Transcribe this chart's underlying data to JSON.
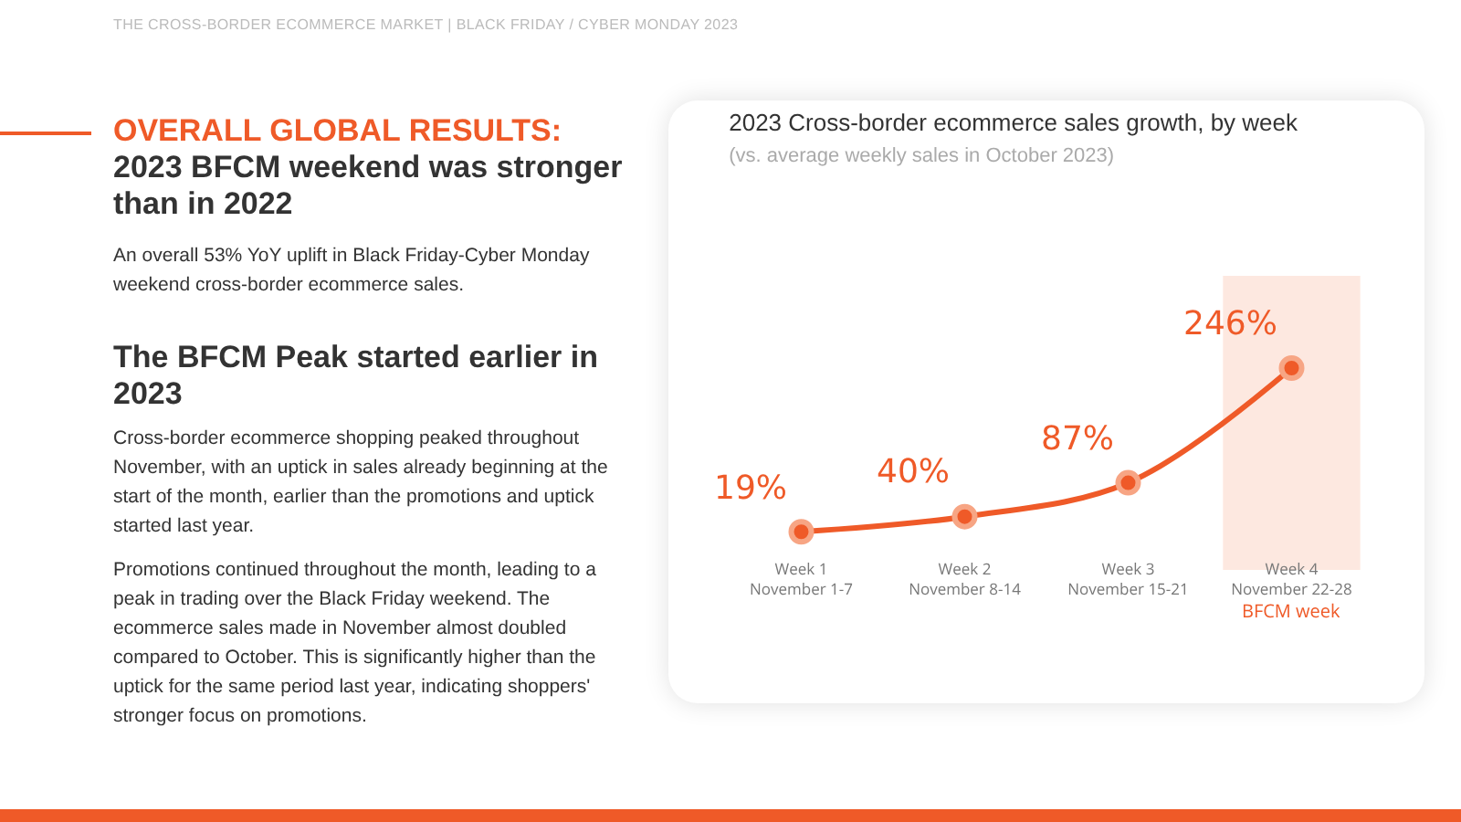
{
  "chart_data": {
    "type": "line",
    "title": "2023 Cross-border ecommerce sales growth, by week",
    "subtitle": "(vs. average weekly sales in October 2023)",
    "categories": [
      "Week 1\nNovember 1-7",
      "Week 2\nNovember 8-14",
      "Week 3\nNovember 15-21",
      "Week 4\nNovember 22-28"
    ],
    "series": [
      {
        "color": "#ef5a28",
        "values": [
          19,
          40,
          87,
          246
        ],
        "value_labels": [
          "19%",
          "40%",
          "87%",
          "246%"
        ]
      }
    ],
    "marker": "circle",
    "line_style": "solid",
    "grid": false,
    "tick_labels": "x",
    "bands": [
      {
        "axis": "x",
        "from": "Week 4\nNovember 22-28",
        "to": "Week 4\nNovember 22-28",
        "label": "BFCM week",
        "color": "#fcd9cb"
      }
    ],
    "annotations": [
      "THE CROSS-BORDER ECOMMERCE MARKET | BLACK FRIDAY / CYBER MONDAY 2023",
      "OVERALL GLOBAL RESULTS:",
      "2023 BFCM weekend was stronger than in 2022",
      "An overall 53% YoY uplift in Black Friday-Cyber Monday weekend cross-border ecommerce sales.",
      "The BFCM Peak started earlier in 2023",
      "Cross-border ecommerce shopping peaked throughout November, with an uptick in sales already beginning at the start of the month, earlier than the promotions and uptick started last year.",
      "Promotions continued throughout the month, leading to a peak in trading over the Black Friday weekend. The ecommerce sales made in November almost doubled compared to October. This is significantly higher than the uptick for the same period last year, indicating shoppers' stronger focus on promotions."
    ]
  }
}
